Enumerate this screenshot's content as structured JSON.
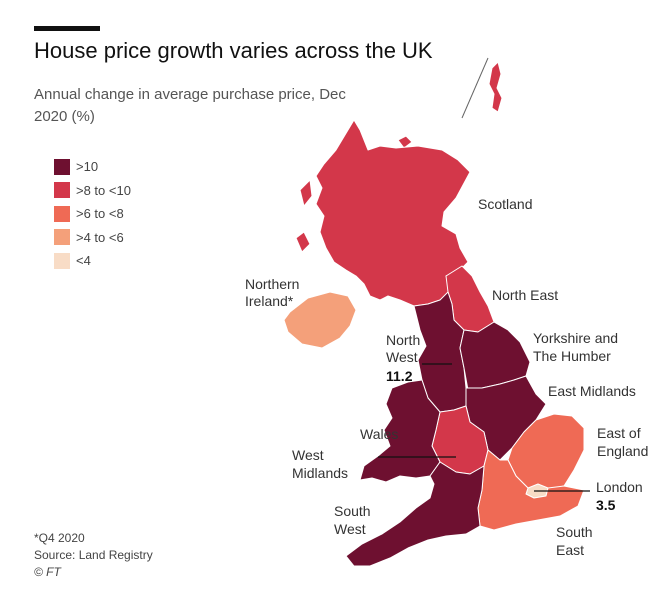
{
  "header": {
    "title": "House price growth varies across the UK",
    "subtitle": "Annual change in average purchase price, Dec 2020 (%)"
  },
  "legend": [
    {
      "label": ">10",
      "color": "#6e1030"
    },
    {
      "label": ">8 to <10",
      "color": "#d3374a"
    },
    {
      "label": ">6 to <8",
      "color": "#ef6a55"
    },
    {
      "label": ">4 to <6",
      "color": "#f4a07a"
    },
    {
      "label": "<4",
      "color": "#f8dcc6"
    }
  ],
  "regions": {
    "scotland": {
      "label": "Scotland",
      "class": ">8 to <10"
    },
    "northern_ireland": {
      "label_line1": "Northern",
      "label_line2": "Ireland*",
      "class": ">4 to <6"
    },
    "north_east": {
      "label": "North East",
      "class": ">8 to <10"
    },
    "north_west": {
      "label_line1": "North",
      "label_line2": "West",
      "value": "11.2",
      "class": ">10"
    },
    "yorkshire": {
      "label_line1": "Yorkshire and",
      "label_line2": "The Humber",
      "class": ">10"
    },
    "east_midlands": {
      "label": "East Midlands",
      "class": ">10"
    },
    "east_of_england": {
      "label_line1": "East of",
      "label_line2": "England",
      "class": ">6 to <8"
    },
    "west_midlands": {
      "label_line1": "West",
      "label_line2": "Midlands",
      "class": ">8 to <10"
    },
    "wales": {
      "label": "Wales",
      "class": ">10"
    },
    "london": {
      "label": "London",
      "value": "3.5",
      "class": "<4"
    },
    "south_west": {
      "label_line1": "South",
      "label_line2": "West",
      "class": ">10"
    },
    "south_east": {
      "label_line1": "South",
      "label_line2": "East",
      "class": ">6 to <8"
    }
  },
  "footer": {
    "note": "*Q4 2020",
    "source": "Source: Land Registry",
    "credit": "© FT"
  }
}
